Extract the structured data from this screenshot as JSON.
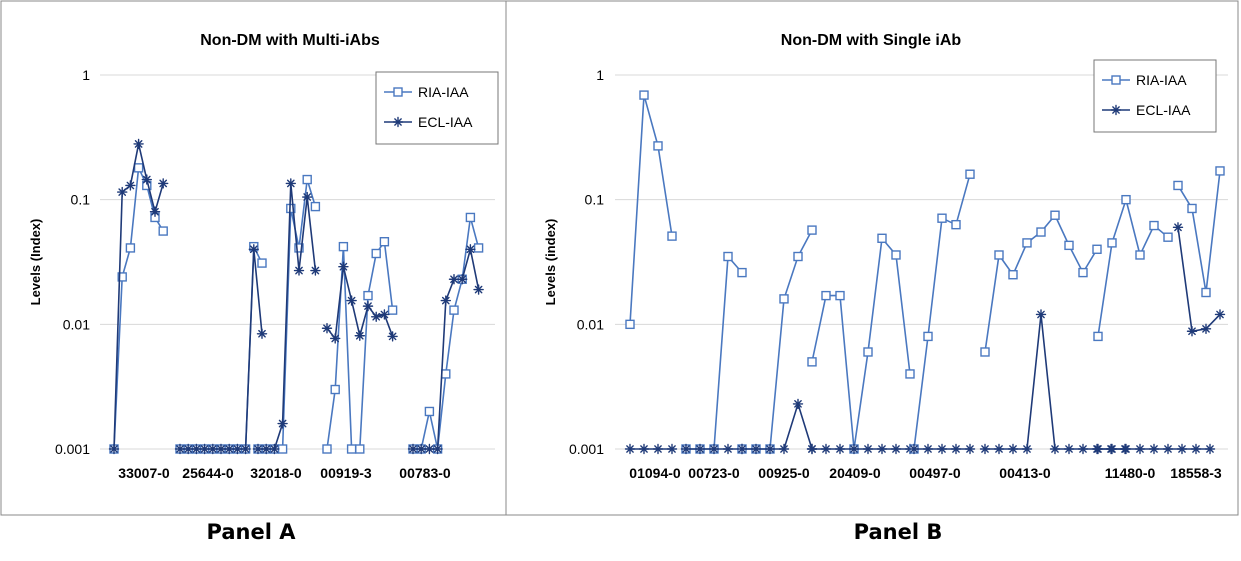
{
  "colors": {
    "ria": "#4a78c0",
    "ecl": "#1f3a78",
    "grid": "#d8d8d8",
    "frame": "#888888"
  },
  "panels": [
    {
      "caption": "Panel A",
      "chart_data": {
        "type": "line",
        "title": "Non-DM with Multi-iAbs",
        "ylabel": "Levels (Index)",
        "yscale": "log",
        "ylim": [
          0.001,
          1
        ],
        "yticks": [
          "1",
          "0.1",
          "0.01",
          "0.001"
        ],
        "legend_position": "top-right",
        "legend": [
          "RIA-IAA",
          "ECL-IAA"
        ],
        "grid": "horizontal",
        "groups": [
          {
            "label": "33007-0",
            "series": [
              {
                "name": "RIA-IAA",
                "marker": "square",
                "values": [
                  0.001,
                  0.024,
                  0.041,
                  0.18,
                  0.13,
                  0.072,
                  0.056
                ]
              },
              {
                "name": "ECL-IAA",
                "marker": "star",
                "values": [
                  0.001,
                  0.115,
                  0.13,
                  0.28,
                  0.145,
                  0.08,
                  0.135
                ]
              }
            ]
          },
          {
            "label": "25644-0",
            "series": [
              {
                "name": "RIA-IAA",
                "marker": "square",
                "values": [
                  0.001,
                  0.001,
                  0.001,
                  0.001,
                  0.001,
                  0.001,
                  0.001,
                  0.001,
                  0.001,
                  0.042,
                  0.031
                ]
              },
              {
                "name": "ECL-IAA",
                "marker": "star",
                "values": [
                  0.001,
                  0.001,
                  0.001,
                  0.001,
                  0.001,
                  0.001,
                  0.001,
                  0.001,
                  0.001,
                  0.04,
                  0.0084
                ]
              }
            ]
          },
          {
            "label": "32018-0",
            "series": [
              {
                "name": "RIA-IAA",
                "marker": "square",
                "values": [
                  0.001,
                  0.001,
                  0.001,
                  0.001,
                  0.085,
                  0.041,
                  0.145,
                  0.088
                ]
              },
              {
                "name": "ECL-IAA",
                "marker": "star",
                "values": [
                  0.001,
                  0.001,
                  0.001,
                  0.0016,
                  0.135,
                  0.027,
                  0.105,
                  0.027
                ]
              }
            ]
          },
          {
            "label": "00919-3",
            "series": [
              {
                "name": "RIA-IAA",
                "marker": "square",
                "values": [
                  0.001,
                  0.003,
                  0.042,
                  0.001,
                  0.001,
                  0.017,
                  0.037,
                  0.046,
                  0.013
                ]
              },
              {
                "name": "ECL-IAA",
                "marker": "star",
                "values": [
                  0.0093,
                  0.0077,
                  0.029,
                  0.0155,
                  0.0081,
                  0.014,
                  0.0115,
                  0.012,
                  0.008
                ]
              }
            ]
          },
          {
            "label": "00783-0",
            "series": [
              {
                "name": "RIA-IAA",
                "marker": "square",
                "values": [
                  0.001,
                  0.001,
                  0.002,
                  0.001,
                  0.004,
                  0.013,
                  0.023,
                  0.072,
                  0.041
                ]
              },
              {
                "name": "ECL-IAA",
                "marker": "star",
                "values": [
                  0.001,
                  0.001,
                  0.001,
                  0.001,
                  0.0155,
                  0.023,
                  0.023,
                  0.04,
                  0.019
                ]
              }
            ]
          }
        ]
      }
    },
    {
      "caption": "Panel B",
      "chart_data": {
        "type": "line",
        "title": "Non-DM with Single iAb",
        "ylabel": "Levels (index)",
        "yscale": "log",
        "ylim": [
          0.001,
          1
        ],
        "yticks": [
          "1",
          "0.1",
          "0.01",
          "0.001"
        ],
        "legend_position": "top-right",
        "legend": [
          "RIA-IAA",
          "ECL-IAA"
        ],
        "grid": "horizontal",
        "groups": [
          {
            "label": "01094-0",
            "series": [
              {
                "name": "RIA-IAA",
                "marker": "square",
                "values": [
                  0.01,
                  0.69,
                  0.27,
                  0.051
                ]
              },
              {
                "name": "ECL-IAA",
                "marker": "star",
                "values": [
                  0.001,
                  0.001,
                  0.001,
                  0.001
                ]
              }
            ]
          },
          {
            "label": "00723-0",
            "series": [
              {
                "name": "RIA-IAA",
                "marker": "square",
                "values": [
                  0.001,
                  0.001,
                  0.001,
                  0.035,
                  0.026
                ]
              },
              {
                "name": "ECL-IAA",
                "marker": "star",
                "values": [
                  0.001,
                  0.001,
                  0.001,
                  0.001,
                  0.001
                ]
              }
            ]
          },
          {
            "label": "00925-0",
            "series": [
              {
                "name": "RIA-IAA",
                "marker": "square",
                "values": [
                  0.001,
                  0.001,
                  0.001,
                  0.016,
                  0.035,
                  0.057
                ]
              },
              {
                "name": "ECL-IAA",
                "marker": "star",
                "values": [
                  0.001,
                  0.001,
                  0.001,
                  0.001,
                  0.0023,
                  0.001
                ]
              }
            ]
          },
          {
            "label": "20409-0",
            "series": [
              {
                "name": "RIA-IAA",
                "marker": "square",
                "values": [
                  0.005,
                  0.017,
                  0.017,
                  0.001,
                  0.006,
                  0.049,
                  0.036,
                  0.004
                ]
              },
              {
                "name": "ECL-IAA",
                "marker": "star",
                "values": [
                  0.001,
                  0.001,
                  0.001,
                  0.001,
                  0.001,
                  0.001,
                  0.001,
                  0.001
                ]
              }
            ]
          },
          {
            "label": "00497-0",
            "series": [
              {
                "name": "RIA-IAA",
                "marker": "square",
                "values": [
                  0.001,
                  0.008,
                  0.071,
                  0.063,
                  0.16
                ]
              },
              {
                "name": "ECL-IAA",
                "marker": "star",
                "values": [
                  0.001,
                  0.001,
                  0.001,
                  0.001,
                  0.001
                ]
              }
            ]
          },
          {
            "label": "00413-0",
            "series": [
              {
                "name": "RIA-IAA",
                "marker": "square",
                "values": [
                  0.006,
                  0.036,
                  0.025,
                  0.045,
                  0.055,
                  0.075,
                  0.043,
                  0.026,
                  0.04
                ]
              },
              {
                "name": "ECL-IAA",
                "marker": "star",
                "values": [
                  0.001,
                  0.001,
                  0.001,
                  0.001,
                  0.012,
                  0.001,
                  0.001,
                  0.001,
                  0.001,
                  0.001,
                  0.001
                ]
              }
            ]
          },
          {
            "label": "11480-0",
            "series": [
              {
                "name": "RIA-IAA",
                "marker": "square",
                "values": [
                  0.008,
                  0.045,
                  0.1,
                  0.036,
                  0.062,
                  0.05
                ]
              },
              {
                "name": "ECL-IAA",
                "marker": "star",
                "values": [
                  0.001,
                  0.001,
                  0.001,
                  0.001,
                  0.001,
                  0.001,
                  0.001,
                  0.001,
                  0.001
                ]
              }
            ]
          },
          {
            "label": "18558-3",
            "series": [
              {
                "name": "RIA-IAA",
                "marker": "square",
                "values": [
                  0.13,
                  0.085,
                  0.018,
                  0.17
                ]
              },
              {
                "name": "ECL-IAA",
                "marker": "star",
                "values": [
                  0.06,
                  0.0088,
                  0.0092,
                  0.012
                ]
              }
            ]
          }
        ]
      }
    }
  ]
}
